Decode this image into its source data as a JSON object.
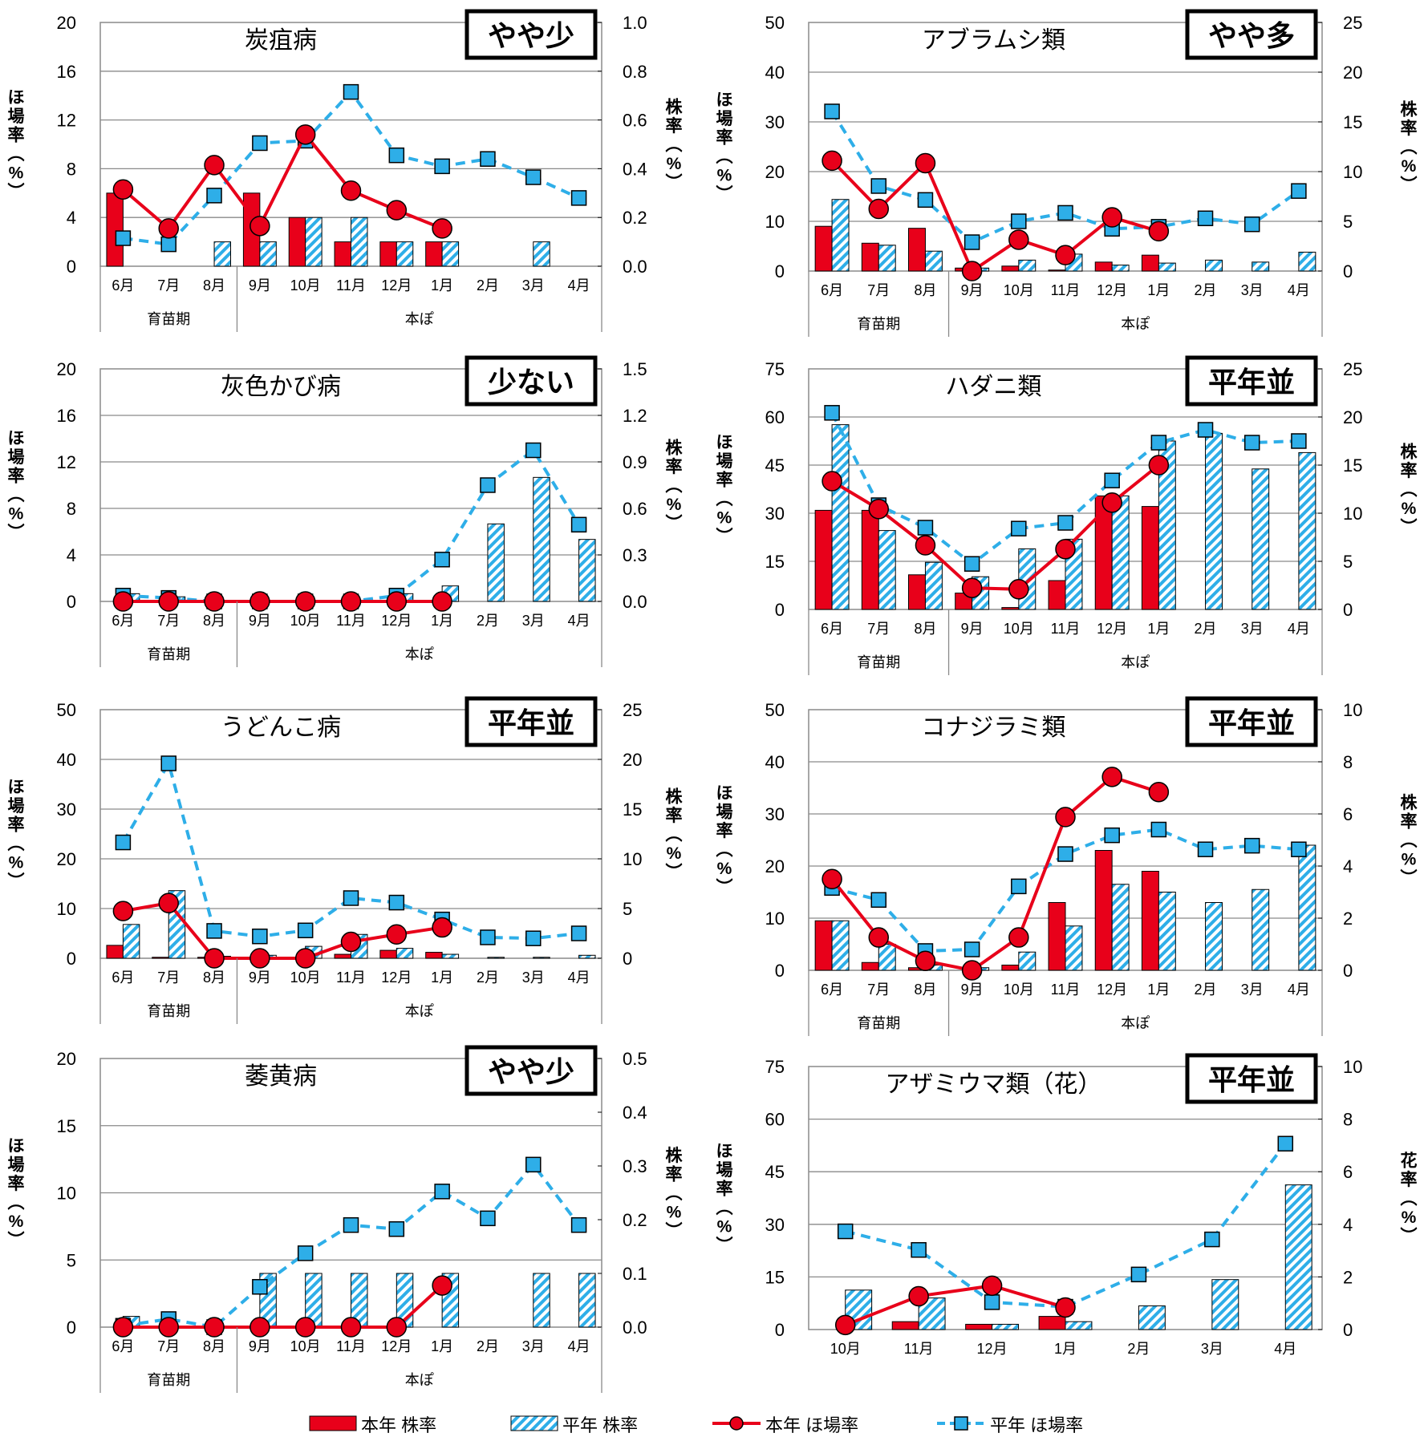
{
  "legend": {
    "items": [
      {
        "kind": "bar-solid",
        "label": "本年 株率"
      },
      {
        "kind": "bar-hatch",
        "label": "平年 株率"
      },
      {
        "kind": "line-solid",
        "label": "本年 ほ場率"
      },
      {
        "kind": "line-dash",
        "label": "平年 ほ場率"
      }
    ]
  },
  "colors": {
    "current": "#e8001a",
    "average": "#2eaee8",
    "hatch_light": "#ffffff"
  },
  "chart_data": [
    {
      "type": "bar",
      "title": "炭疽病",
      "badge": "やや少",
      "ylabel": "ほ場率（%）",
      "y2label": "株率（%）",
      "ylim": [
        0,
        20
      ],
      "yticks": [
        "0",
        "4",
        "8",
        "12",
        "16",
        "20"
      ],
      "y2lim": [
        0,
        1.0
      ],
      "y2ticks": [
        "0.0",
        "0.2",
        "0.4",
        "0.6",
        "0.8",
        "1.0"
      ],
      "categories": [
        "6月",
        "7月",
        "8月",
        "9月",
        "10月",
        "11月",
        "12月",
        "1月",
        "2月",
        "3月",
        "4月"
      ],
      "groups": [
        {
          "label": "育苗期",
          "count": 3
        },
        {
          "label": "本ぽ",
          "count": 8
        }
      ],
      "series": [
        {
          "name": "本年 株率",
          "axis": "y2",
          "kind": "bar",
          "values": [
            0.3,
            0.0,
            0.0,
            0.3,
            0.2,
            0.1,
            0.1,
            0.1,
            null,
            null,
            null
          ]
        },
        {
          "name": "平年 株率",
          "axis": "y2",
          "kind": "bar-hatch",
          "values": [
            null,
            null,
            0.1,
            0.1,
            0.2,
            0.2,
            0.1,
            0.1,
            null,
            0.1,
            null
          ]
        },
        {
          "name": "本年 ほ場率",
          "axis": "y",
          "kind": "line",
          "values": [
            6.3,
            3.1,
            8.3,
            3.3,
            10.8,
            6.2,
            4.6,
            3.1,
            null,
            null,
            null
          ]
        },
        {
          "name": "平年 ほ場率",
          "axis": "y",
          "kind": "line-dash",
          "values": [
            2.3,
            1.8,
            5.8,
            10.1,
            10.3,
            14.3,
            9.1,
            8.2,
            8.8,
            7.3,
            5.6
          ]
        }
      ]
    },
    {
      "type": "bar",
      "title": "アブラムシ類",
      "badge": "やや多",
      "ylabel": "ほ場率（%）",
      "y2label": "株率（%）",
      "ylim": [
        0,
        50
      ],
      "yticks": [
        "0",
        "10",
        "20",
        "30",
        "40",
        "50"
      ],
      "y2lim": [
        0,
        25
      ],
      "y2ticks": [
        "0",
        "5",
        "10",
        "15",
        "20",
        "25"
      ],
      "categories": [
        "6月",
        "7月",
        "8月",
        "9月",
        "10月",
        "11月",
        "12月",
        "1月",
        "2月",
        "3月",
        "4月"
      ],
      "groups": [
        {
          "label": "育苗期",
          "count": 3
        },
        {
          "label": "本ぽ",
          "count": 8
        }
      ],
      "series": [
        {
          "name": "本年 株率",
          "axis": "y2",
          "kind": "bar",
          "values": [
            4.5,
            2.8,
            4.3,
            0.3,
            0.5,
            0.1,
            0.9,
            1.6,
            null,
            null,
            null
          ]
        },
        {
          "name": "平年 株率",
          "axis": "y2",
          "kind": "bar-hatch",
          "values": [
            7.2,
            2.6,
            2.0,
            0.3,
            1.1,
            1.7,
            0.6,
            0.8,
            1.1,
            0.9,
            1.9
          ]
        },
        {
          "name": "本年 ほ場率",
          "axis": "y",
          "kind": "line",
          "values": [
            22.2,
            12.5,
            21.7,
            0.0,
            6.3,
            3.2,
            10.8,
            8.0,
            null,
            null,
            null
          ]
        },
        {
          "name": "平年 ほ場率",
          "axis": "y",
          "kind": "line-dash",
          "values": [
            32.1,
            17.1,
            14.3,
            5.8,
            10.0,
            11.7,
            8.5,
            8.9,
            10.6,
            9.4,
            16.1
          ]
        }
      ]
    },
    {
      "type": "bar",
      "title": "灰色かび病",
      "badge": "少ない",
      "ylabel": "ほ場率（%）",
      "y2label": "株率（%）",
      "ylim": [
        0,
        20
      ],
      "yticks": [
        "0",
        "4",
        "8",
        "12",
        "16",
        "20"
      ],
      "y2lim": [
        0,
        1.5
      ],
      "y2ticks": [
        "0.0",
        "0.3",
        "0.6",
        "0.9",
        "1.2",
        "1.5"
      ],
      "categories": [
        "6月",
        "7月",
        "8月",
        "9月",
        "10月",
        "11月",
        "12月",
        "1月",
        "2月",
        "3月",
        "4月"
      ],
      "groups": [
        {
          "label": "育苗期",
          "count": 3
        },
        {
          "label": "本ぽ",
          "count": 8
        }
      ],
      "series": [
        {
          "name": "本年 株率",
          "axis": "y2",
          "kind": "bar",
          "values": [
            0,
            0,
            0,
            0,
            0,
            0,
            0,
            0,
            null,
            null,
            null
          ]
        },
        {
          "name": "平年 株率",
          "axis": "y2",
          "kind": "bar-hatch",
          "values": [
            0.05,
            0.03,
            0.0,
            0.0,
            0.0,
            0.0,
            0.05,
            0.1,
            0.5,
            0.8,
            0.4
          ]
        },
        {
          "name": "本年 ほ場率",
          "axis": "y",
          "kind": "line",
          "values": [
            0,
            0,
            0,
            0,
            0,
            0,
            0,
            0,
            null,
            null,
            null
          ]
        },
        {
          "name": "平年 ほ場率",
          "axis": "y",
          "kind": "line-dash",
          "values": [
            0.5,
            0.3,
            0.0,
            0.0,
            0.0,
            0.0,
            0.5,
            3.6,
            10.0,
            13.0,
            6.6
          ]
        }
      ]
    },
    {
      "type": "bar",
      "title": "ハダニ類",
      "badge": "平年並",
      "ylabel": "ほ場率（%）",
      "y2label": "株率（%）",
      "ylim": [
        0,
        75
      ],
      "yticks": [
        "0",
        "15",
        "30",
        "45",
        "60",
        "75"
      ],
      "y2lim": [
        0,
        25
      ],
      "y2ticks": [
        "0",
        "5",
        "10",
        "15",
        "20",
        "25"
      ],
      "categories": [
        "6月",
        "7月",
        "8月",
        "9月",
        "10月",
        "11月",
        "12月",
        "1月",
        "2月",
        "3月",
        "4月"
      ],
      "groups": [
        {
          "label": "育苗期",
          "count": 3
        },
        {
          "label": "本ぽ",
          "count": 8
        }
      ],
      "series": [
        {
          "name": "本年 株率",
          "axis": "y2",
          "kind": "bar",
          "values": [
            10.3,
            10.3,
            3.6,
            1.7,
            0.2,
            3.0,
            11.8,
            10.7,
            null,
            null,
            null
          ]
        },
        {
          "name": "平年 株率",
          "axis": "y2",
          "kind": "bar-hatch",
          "values": [
            19.2,
            8.2,
            4.9,
            3.4,
            6.3,
            7.3,
            11.8,
            17.5,
            18.3,
            14.6,
            16.3
          ]
        },
        {
          "name": "本年 ほ場率",
          "axis": "y",
          "kind": "line",
          "values": [
            40.0,
            31.3,
            20.0,
            6.7,
            6.3,
            18.8,
            33.3,
            45.0,
            null,
            null,
            null
          ]
        },
        {
          "name": "平年 ほ場率",
          "axis": "y",
          "kind": "line-dash",
          "values": [
            61.3,
            32.5,
            25.5,
            14.2,
            25.2,
            27.0,
            40.2,
            52.0,
            56.0,
            52.0,
            52.5
          ]
        }
      ]
    },
    {
      "type": "bar",
      "title": "うどんこ病",
      "badge": "平年並",
      "ylabel": "ほ場率（%）",
      "y2label": "株率（%）",
      "ylim": [
        0,
        50
      ],
      "yticks": [
        "0",
        "10",
        "20",
        "30",
        "40",
        "50"
      ],
      "y2lim": [
        0,
        25
      ],
      "y2ticks": [
        "0",
        "5",
        "10",
        "15",
        "20",
        "25"
      ],
      "categories": [
        "6月",
        "7月",
        "8月",
        "9月",
        "10月",
        "11月",
        "12月",
        "1月",
        "2月",
        "3月",
        "4月"
      ],
      "groups": [
        {
          "label": "育苗期",
          "count": 3
        },
        {
          "label": "本ぽ",
          "count": 8
        }
      ],
      "series": [
        {
          "name": "本年 株率",
          "axis": "y2",
          "kind": "bar",
          "values": [
            1.3,
            0.1,
            0.1,
            0.1,
            0.1,
            0.4,
            0.8,
            0.6,
            null,
            null,
            null
          ]
        },
        {
          "name": "平年 株率",
          "axis": "y2",
          "kind": "bar-hatch",
          "values": [
            3.4,
            6.8,
            0.2,
            0.3,
            1.2,
            2.4,
            1.0,
            0.4,
            0.1,
            0.1,
            0.3
          ]
        },
        {
          "name": "本年 ほ場率",
          "axis": "y",
          "kind": "line",
          "values": [
            9.5,
            11.1,
            0.0,
            0.0,
            0.0,
            3.3,
            4.8,
            6.2,
            null,
            null,
            null
          ]
        },
        {
          "name": "平年 ほ場率",
          "axis": "y",
          "kind": "line-dash",
          "values": [
            23.3,
            39.2,
            5.5,
            4.4,
            5.6,
            12.1,
            11.2,
            7.8,
            4.2,
            4.0,
            5.0
          ]
        }
      ]
    },
    {
      "type": "bar",
      "title": "コナジラミ類",
      "badge": "平年並",
      "ylabel": "ほ場率（%）",
      "y2label": "株率（%）",
      "ylim": [
        0,
        50
      ],
      "yticks": [
        "0",
        "10",
        "20",
        "30",
        "40",
        "50"
      ],
      "y2lim": [
        0,
        10
      ],
      "y2ticks": [
        "0",
        "2",
        "4",
        "6",
        "8",
        "10"
      ],
      "categories": [
        "6月",
        "7月",
        "8月",
        "9月",
        "10月",
        "11月",
        "12月",
        "1月",
        "2月",
        "3月",
        "4月"
      ],
      "groups": [
        {
          "label": "育苗期",
          "count": 3
        },
        {
          "label": "本ぽ",
          "count": 8
        }
      ],
      "series": [
        {
          "name": "本年 株率",
          "axis": "y2",
          "kind": "bar",
          "values": [
            1.9,
            0.3,
            0.1,
            0.0,
            0.2,
            2.6,
            4.6,
            3.8,
            null,
            null,
            null
          ]
        },
        {
          "name": "平年 株率",
          "axis": "y2",
          "kind": "bar-hatch",
          "values": [
            1.9,
            1.0,
            0.2,
            0.1,
            0.7,
            1.7,
            3.3,
            3.0,
            2.6,
            3.1,
            4.8
          ]
        },
        {
          "name": "本年 ほ場率",
          "axis": "y",
          "kind": "line",
          "values": [
            17.5,
            6.3,
            1.8,
            0.0,
            6.3,
            29.4,
            37.1,
            34.2,
            null,
            null,
            null
          ]
        },
        {
          "name": "平年 ほ場率",
          "axis": "y",
          "kind": "line-dash",
          "values": [
            15.8,
            13.5,
            3.7,
            4.0,
            16.1,
            22.3,
            25.9,
            27.0,
            23.2,
            23.9,
            23.2
          ]
        }
      ]
    },
    {
      "type": "bar",
      "title": "萎黄病",
      "badge": "やや少",
      "ylabel": "ほ場率（%）",
      "y2label": "株率（%）",
      "ylim": [
        0,
        20
      ],
      "yticks": [
        "0",
        "5",
        "10",
        "15",
        "20"
      ],
      "y2lim": [
        0,
        0.5
      ],
      "y2ticks": [
        "0.0",
        "0.1",
        "0.2",
        "0.3",
        "0.4",
        "0.5"
      ],
      "categories": [
        "6月",
        "7月",
        "8月",
        "9月",
        "10月",
        "11月",
        "12月",
        "1月",
        "2月",
        "3月",
        "4月"
      ],
      "groups": [
        {
          "label": "育苗期",
          "count": 3
        },
        {
          "label": "本ぽ",
          "count": 8
        }
      ],
      "series": [
        {
          "name": "本年 株率",
          "axis": "y2",
          "kind": "bar",
          "values": [
            0,
            0,
            0,
            0,
            0,
            0,
            0,
            0,
            null,
            null,
            null
          ]
        },
        {
          "name": "平年 株率",
          "axis": "y2",
          "kind": "bar-hatch",
          "values": [
            0.02,
            null,
            null,
            0.1,
            0.1,
            0.1,
            0.1,
            0.1,
            null,
            0.1,
            0.1
          ]
        },
        {
          "name": "本年 ほ場率",
          "axis": "y",
          "kind": "line",
          "values": [
            0,
            0,
            0,
            0,
            0,
            0,
            0,
            3.1,
            null,
            null,
            null
          ]
        },
        {
          "name": "平年 ほ場率",
          "axis": "y",
          "kind": "line-dash",
          "values": [
            0.1,
            0.6,
            0.0,
            3.0,
            5.5,
            7.6,
            7.3,
            10.1,
            8.1,
            12.1,
            7.6
          ]
        }
      ]
    },
    {
      "type": "bar",
      "title": "アザミウマ類（花）",
      "badge": "平年並",
      "ylabel": "ほ場率（%）",
      "y2label": "花率（%）",
      "ylim": [
        0,
        75
      ],
      "yticks": [
        "0",
        "15",
        "30",
        "45",
        "60",
        "75"
      ],
      "y2lim": [
        0,
        10
      ],
      "y2ticks": [
        "0",
        "2",
        "4",
        "6",
        "8",
        "10"
      ],
      "categories": [
        "10月",
        "11月",
        "12月",
        "1月",
        "2月",
        "3月",
        "4月"
      ],
      "groups": [],
      "series": [
        {
          "name": "本年 株率",
          "axis": "y2",
          "kind": "bar",
          "values": [
            0.0,
            0.3,
            0.2,
            0.5,
            null,
            null,
            null
          ]
        },
        {
          "name": "平年 株率",
          "axis": "y2",
          "kind": "bar-hatch",
          "values": [
            1.5,
            1.2,
            0.2,
            0.3,
            0.9,
            1.9,
            5.5
          ]
        },
        {
          "name": "本年 ほ場率",
          "axis": "y",
          "kind": "line",
          "values": [
            1.3,
            9.5,
            12.5,
            6.3,
            null,
            null,
            null
          ]
        },
        {
          "name": "平年 ほ場率",
          "axis": "y",
          "kind": "line-dash",
          "values": [
            28.0,
            22.7,
            7.8,
            6.5,
            15.7,
            25.7,
            53.0
          ]
        }
      ]
    }
  ]
}
